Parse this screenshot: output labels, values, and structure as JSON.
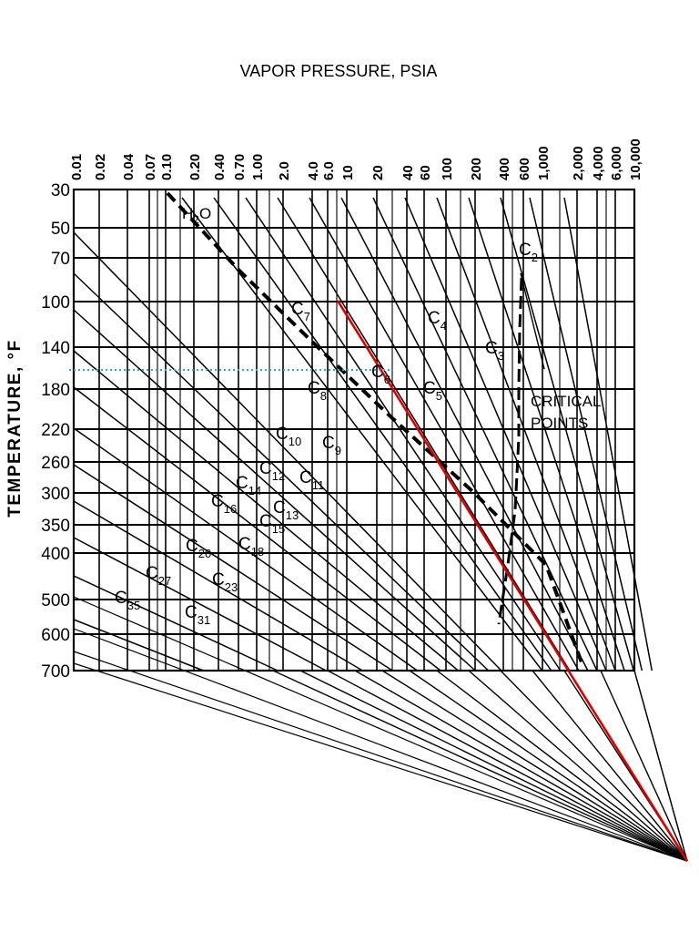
{
  "chart_data": {
    "type": "line",
    "title": "",
    "xlabel": "VAPOR PRESSURE, PSIA",
    "ylabel": "TEMPERATURE, °F",
    "x_scale": "nomographic",
    "x_ticks": [
      "0.01",
      "0.02",
      "0.04",
      "0.07",
      "0.10",
      "0.20",
      "0.40",
      "0.70",
      "1.00",
      "2.0",
      "4.0",
      "6.0",
      "10",
      "20",
      "40",
      "60",
      "100",
      "200",
      "400",
      "600",
      "1,000",
      "2,000",
      "4,000",
      "6,000",
      "10,000"
    ],
    "y_ticks": [
      "30",
      "50",
      "70",
      "100",
      "140",
      "180",
      "220",
      "260",
      "300",
      "350",
      "400",
      "500",
      "600",
      "700"
    ],
    "grid": true,
    "series": [
      {
        "name": "C2"
      },
      {
        "name": "C3"
      },
      {
        "name": "C4"
      },
      {
        "name": "C5"
      },
      {
        "name": "C6"
      },
      {
        "name": "C7"
      },
      {
        "name": "C8"
      },
      {
        "name": "C9"
      },
      {
        "name": "C10"
      },
      {
        "name": "C11"
      },
      {
        "name": "C12"
      },
      {
        "name": "C13"
      },
      {
        "name": "C14"
      },
      {
        "name": "C15"
      },
      {
        "name": "C16"
      },
      {
        "name": "C18"
      },
      {
        "name": "C20"
      },
      {
        "name": "C23"
      },
      {
        "name": "C27"
      },
      {
        "name": "C31"
      },
      {
        "name": "C35"
      },
      {
        "name": "H2O"
      }
    ],
    "annotations": [
      "CRITICAL POINTS"
    ],
    "highlight": {
      "temperature": "160",
      "series": "C6"
    },
    "colors": {
      "lines": "#000000",
      "highlight_line": "#e00000",
      "highlight_temp": "#2aa8e0"
    }
  }
}
